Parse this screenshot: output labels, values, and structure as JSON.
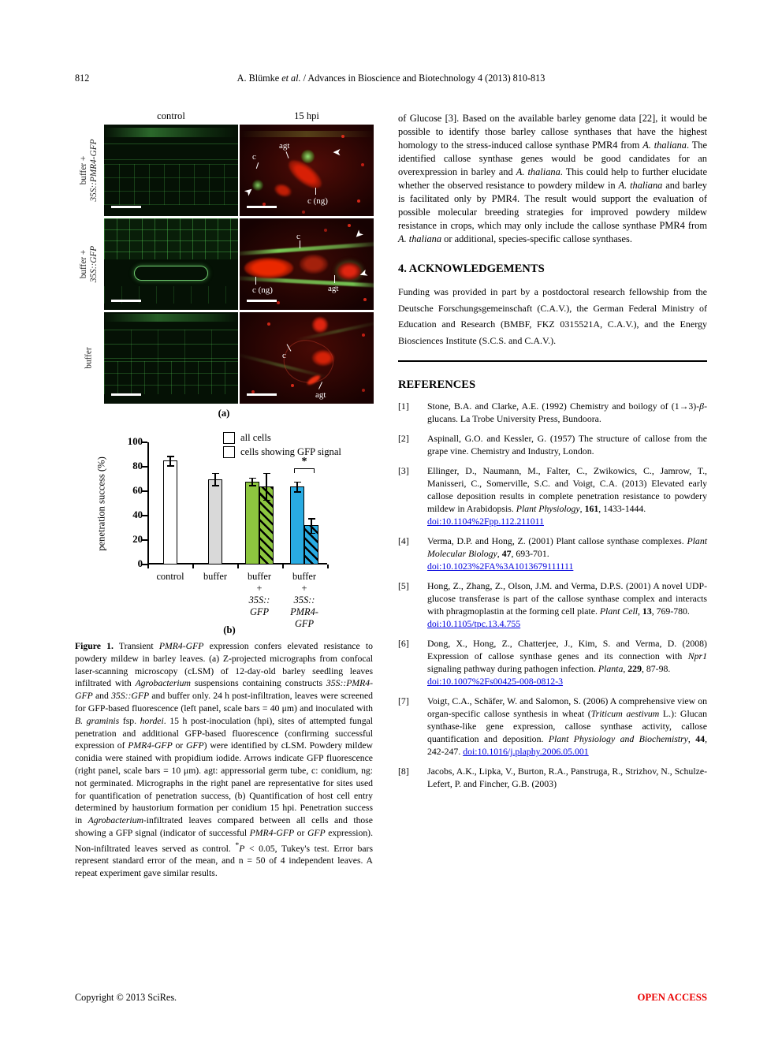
{
  "header": {
    "page_number": "812",
    "citation_segments": [
      {
        "t": "A. Blümke "
      },
      {
        "t": "et al.",
        "i": true
      },
      {
        "t": " / Advances in Bioscience and Biotechnology 4 (2013) 810-813"
      }
    ]
  },
  "figure_a": {
    "col_headers": [
      "control",
      "15 hpi"
    ],
    "rows": [
      {
        "label_lines": [
          {
            "t": "buffer +"
          },
          {
            "t": "35S::PMR4-GFP",
            "i": true
          }
        ],
        "annotations": [
          "agt",
          "c",
          "c (ng)"
        ]
      },
      {
        "label_lines": [
          {
            "t": "buffer +"
          },
          {
            "t": "35S::GFP",
            "i": true
          }
        ],
        "annotations": [
          "c",
          "c (ng)",
          "agt"
        ]
      },
      {
        "label_lines": [
          {
            "t": "buffer"
          }
        ],
        "annotations": [
          "c",
          "agt"
        ]
      }
    ],
    "panel_label": "(a)"
  },
  "chart_data": {
    "type": "bar",
    "ylabel": "penetration success (%)",
    "ylim": [
      0,
      100
    ],
    "yticks": [
      0,
      20,
      40,
      60,
      80,
      100
    ],
    "categories": [
      "control",
      "buffer",
      "buffer + 35S::GFP",
      "buffer + 35S::PMR4-GFP"
    ],
    "series": [
      {
        "name": "all cells",
        "values": [
          85,
          70,
          68,
          64
        ],
        "errors": [
          4,
          5,
          3,
          4
        ]
      },
      {
        "name": "cells showing GFP signal",
        "values": [
          null,
          null,
          64,
          32
        ],
        "errors": [
          null,
          null,
          11,
          6
        ]
      }
    ],
    "legend": [
      {
        "label": "all cells",
        "hatch": false
      },
      {
        "label": "cells showing GFP signal",
        "hatch": true
      }
    ],
    "legend_position": "top-right",
    "grid": false,
    "significance_marker": "*",
    "panel_label": "(b)",
    "groups": [
      {
        "label_lines": [
          {
            "t": "control"
          }
        ],
        "bars": [
          {
            "series": "all cells",
            "value": 85,
            "error": 4,
            "color": "#ffffff"
          }
        ]
      },
      {
        "label_lines": [
          {
            "t": "buffer"
          }
        ],
        "bars": [
          {
            "series": "all cells",
            "value": 70,
            "error": 5,
            "color": "#d9d9d9"
          }
        ]
      },
      {
        "label_lines": [
          {
            "t": "buffer"
          },
          {
            "t": "+"
          },
          {
            "t": "35S::",
            "i": true
          },
          {
            "t": "GFP",
            "i": true
          }
        ],
        "bars": [
          {
            "series": "all cells",
            "value": 68,
            "error": 3,
            "color": "#8dc63f"
          },
          {
            "series": "cells showing GFP signal",
            "value": 64,
            "error": 11,
            "color": "#8dc63f",
            "hatch": true
          }
        ]
      },
      {
        "label_lines": [
          {
            "t": "buffer"
          },
          {
            "t": "+"
          },
          {
            "t": "35S::",
            "i": true
          },
          {
            "t": "PMR4-",
            "i": true
          },
          {
            "t": "GFP",
            "i": true
          }
        ],
        "bars": [
          {
            "series": "all cells",
            "value": 64,
            "error": 4,
            "color": "#29abe2"
          },
          {
            "series": "cells showing GFP signal",
            "value": 32,
            "error": 6,
            "color": "#29abe2",
            "hatch": true
          }
        ],
        "significance": true
      }
    ]
  },
  "caption": {
    "segments": [
      {
        "t": "Figure 1.",
        "b": true
      },
      {
        "t": " Transient "
      },
      {
        "t": "PMR4-GFP",
        "i": true
      },
      {
        "t": " expression confers elevated resistance to powdery mildew in barley leaves. (a) Z-projected micrographs from confocal laser-scanning microscopy (cLSM) of 12-day-old barley seedling leaves infiltrated with "
      },
      {
        "t": "Agrobacterium",
        "i": true
      },
      {
        "t": " suspensions containing constructs "
      },
      {
        "t": "35S::PMR4-GFP",
        "i": true
      },
      {
        "t": " and "
      },
      {
        "t": "35S::GFP",
        "i": true
      },
      {
        "t": " and buffer only. 24 h post-infiltration, leaves were screened for GFP-based fluorescence (left panel, scale bars = 40 μm) and inoculated with "
      },
      {
        "t": "B. graminis",
        "i": true
      },
      {
        "t": " fsp. "
      },
      {
        "t": "hordei",
        "i": true
      },
      {
        "t": ". 15 h post-inoculation (hpi), sites of attempted fungal penetration and additional GFP-based fluorescence (confirming successful expression of "
      },
      {
        "t": "PMR4-GFP",
        "i": true
      },
      {
        "t": " or "
      },
      {
        "t": "GFP",
        "i": true
      },
      {
        "t": ") were identified by cLSM. Powdery mildew conidia were stained with propidium iodide. Arrows indicate GFP fluorescence (right panel, scale bars = 10 μm). agt: appressorial germ tube, c: conidium, ng: not germinated. Micrographs in the right panel are representative for sites used for quantification of penetration success, (b) Quantification of host cell entry determined by haustorium formation per conidium 15 hpi. Penetration success in "
      },
      {
        "t": "Agrobacterium",
        "i": true
      },
      {
        "t": "-infiltrated leaves compared between all cells and those showing a GFP signal (indicator of successful "
      },
      {
        "t": "PMR4-GFP",
        "i": true
      },
      {
        "t": " or "
      },
      {
        "t": "GFP",
        "i": true
      },
      {
        "t": " expression). Non-infiltrated leaves served as control. "
      },
      {
        "t": "*",
        "sup": true
      },
      {
        "t": "P",
        "i": true
      },
      {
        "t": " < 0.05, Tukey's test. Error bars represent standard error of the mean, and n = 50 of 4 independent leaves. A repeat experiment gave similar results."
      }
    ]
  },
  "body": {
    "paragraph_segments": [
      {
        "t": "of Glucose [3]. Based on the available barley genome data [22], it would be possible to identify those barley callose synthases that have the highest homology to the stress-induced callose synthase PMR4 from "
      },
      {
        "t": "A. thaliana",
        "i": true
      },
      {
        "t": ". The identified callose synthase genes would be good candidates for an overexpression in barley and "
      },
      {
        "t": "A. thaliana",
        "i": true
      },
      {
        "t": ". This could help to further elucidate whether the observed resistance to powdery mildew in "
      },
      {
        "t": "A. thaliana",
        "i": true
      },
      {
        "t": " and barley is facilitated only by PMR4. The result would support the evaluation of possible molecular breeding strategies for improved powdery mildew resistance in crops, which may only include the callose synthase PMR4 from "
      },
      {
        "t": "A. thaliana",
        "i": true
      },
      {
        "t": " or additional, species-specific callose synthases."
      }
    ]
  },
  "acknowledgements": {
    "heading": "4. ACKNOWLEDGEMENTS",
    "text": "Funding was provided in part by a postdoctoral research fellowship from the Deutsche Forschungsgemeinschaft (C.A.V.), the German Federal Ministry of Education and Research (BMBF, FKZ 0315521A, C.A.V.), and the Energy Biosciences Institute (S.C.S. and C.A.V.)."
  },
  "references": {
    "heading": "REFERENCES",
    "items": [
      {
        "num": "[1]",
        "segments": [
          {
            "t": "Stone, B.A. and Clarke, A.E. (1992) Chemistry and boilogy of (1→3)-"
          },
          {
            "t": "β",
            "i": true
          },
          {
            "t": "-glucans. La Trobe University Press, Bundoora."
          }
        ]
      },
      {
        "num": "[2]",
        "segments": [
          {
            "t": "Aspinall, G.O. and Kessler, G. (1957) The structure of callose from the grape vine. Chemistry and Industry, London."
          }
        ]
      },
      {
        "num": "[3]",
        "segments": [
          {
            "t": "Ellinger, D., Naumann, M., Falter, C., Zwikowics, C., Jamrow, T., Manisseri, C., Somerville, S.C. and Voigt, C.A. (2013) Elevated early callose deposition results in complete penetration resistance to powdery mildew in Arabidopsis. "
          },
          {
            "t": "Plant Physiology",
            "i": true
          },
          {
            "t": ", "
          },
          {
            "t": "161",
            "b": true
          },
          {
            "t": ", 1433-1444."
          },
          {
            "br": true
          },
          {
            "t": "doi:10.1104%2Fpp.112.211011",
            "link": true
          }
        ]
      },
      {
        "num": "[4]",
        "segments": [
          {
            "t": "Verma, D.P. and Hong, Z. (2001) Plant callose synthase complexes. "
          },
          {
            "t": "Plant Molecular Biology",
            "i": true
          },
          {
            "t": ", "
          },
          {
            "t": "47",
            "b": true
          },
          {
            "t": ", 693-701."
          },
          {
            "br": true
          },
          {
            "t": "doi:10.1023%2FA%3A1013679111111",
            "link": true
          }
        ]
      },
      {
        "num": "[5]",
        "segments": [
          {
            "t": "Hong, Z., Zhang, Z., Olson, J.M. and Verma, D.P.S. (2001) A novel UDP-glucose transferase is part of the callose synthase complex and interacts with phragmoplastin at the forming cell plate. "
          },
          {
            "t": "Plant Cell",
            "i": true
          },
          {
            "t": ", "
          },
          {
            "t": "13",
            "b": true
          },
          {
            "t": ", 769-780."
          },
          {
            "br": true
          },
          {
            "t": "doi:10.1105/tpc.13.4.755",
            "link": true
          }
        ]
      },
      {
        "num": "[6]",
        "segments": [
          {
            "t": "Dong, X., Hong, Z., Chatterjee, J., Kim, S. and Verma, D. (2008) Expression of callose synthase genes and its connection with "
          },
          {
            "t": "Npr1",
            "i": true
          },
          {
            "t": " signaling pathway during pathogen infection. "
          },
          {
            "t": "Planta",
            "i": true
          },
          {
            "t": ", "
          },
          {
            "t": "229",
            "b": true
          },
          {
            "t": ", 87-98."
          },
          {
            "br": true
          },
          {
            "t": "doi:10.1007%2Fs00425-008-0812-3",
            "link": true
          }
        ]
      },
      {
        "num": "[7]",
        "segments": [
          {
            "t": "Voigt, C.A., Schäfer, W. and Salomon, S. (2006) A comprehensive view on organ-specific callose synthesis in wheat ("
          },
          {
            "t": "Triticum aestivum",
            "i": true
          },
          {
            "t": " L.): Glucan synthase-like gene expression, callose synthase activity, callose quantification and deposition. "
          },
          {
            "t": "Plant Physiology and Biochemistry",
            "i": true
          },
          {
            "t": ", "
          },
          {
            "t": "44",
            "b": true
          },
          {
            "t": ", 242-247. "
          },
          {
            "t": "doi:10.1016/j.plaphy.2006.05.001",
            "link": true
          }
        ]
      },
      {
        "num": "[8]",
        "segments": [
          {
            "t": "Jacobs, A.K., Lipka, V., Burton, R.A., Panstruga, R., Strizhov, N., Schulze-Lefert, P. and Fincher, G.B. (2003)"
          }
        ]
      }
    ]
  },
  "footer": {
    "left": "Copyright © 2013 SciRes.",
    "right": "OPEN ACCESS"
  },
  "colors": {
    "bar_green": "#8dc63f",
    "bar_blue": "#29abe2",
    "bar_gray": "#d9d9d9",
    "doi_link": "#0000dd",
    "open_access_red": "#ea0000"
  }
}
